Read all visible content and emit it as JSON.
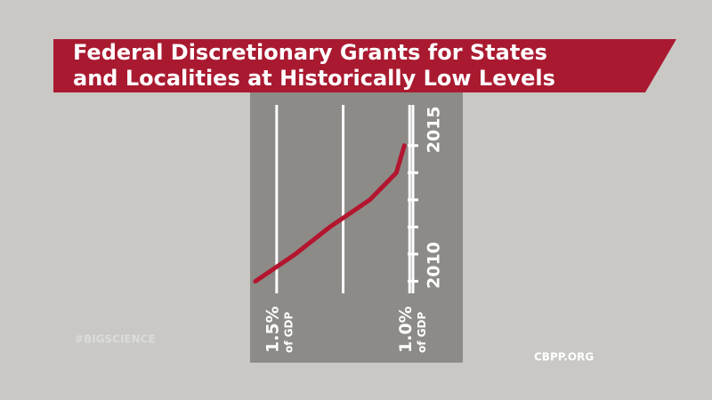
{
  "chart_data": {
    "type": "line",
    "orientation": "horizontal",
    "title_lines": [
      "Federal Discretionary Grants for States",
      "and Localities at Historically Low Levels"
    ],
    "x": [
      2010,
      2011,
      2012,
      2013,
      2014,
      2015
    ],
    "series": [
      {
        "color": "#b3162e",
        "values": [
          1.58,
          1.43,
          1.3,
          1.15,
          1.05,
          1.02
        ]
      }
    ],
    "xlim": [
      1.6,
      0.8
    ],
    "xticks": [
      {
        "value": 1.5,
        "label": "1.5%"
      },
      {
        "value": 1.25,
        "label": null
      },
      {
        "value": 1.0,
        "label": "1.0%"
      }
    ],
    "x_unit_label": "of GDP",
    "ylim": [
      2007,
      2016.5
    ],
    "yticks": [
      2010,
      {
        "value": 2011,
        "label": null
      },
      {
        "value": 2012,
        "label": null
      },
      {
        "value": 2013,
        "label": null
      },
      {
        "value": 2014,
        "label": null
      },
      2015
    ],
    "hashtag": "#BIGSCIENCE",
    "source": "CBPP.ORG"
  }
}
